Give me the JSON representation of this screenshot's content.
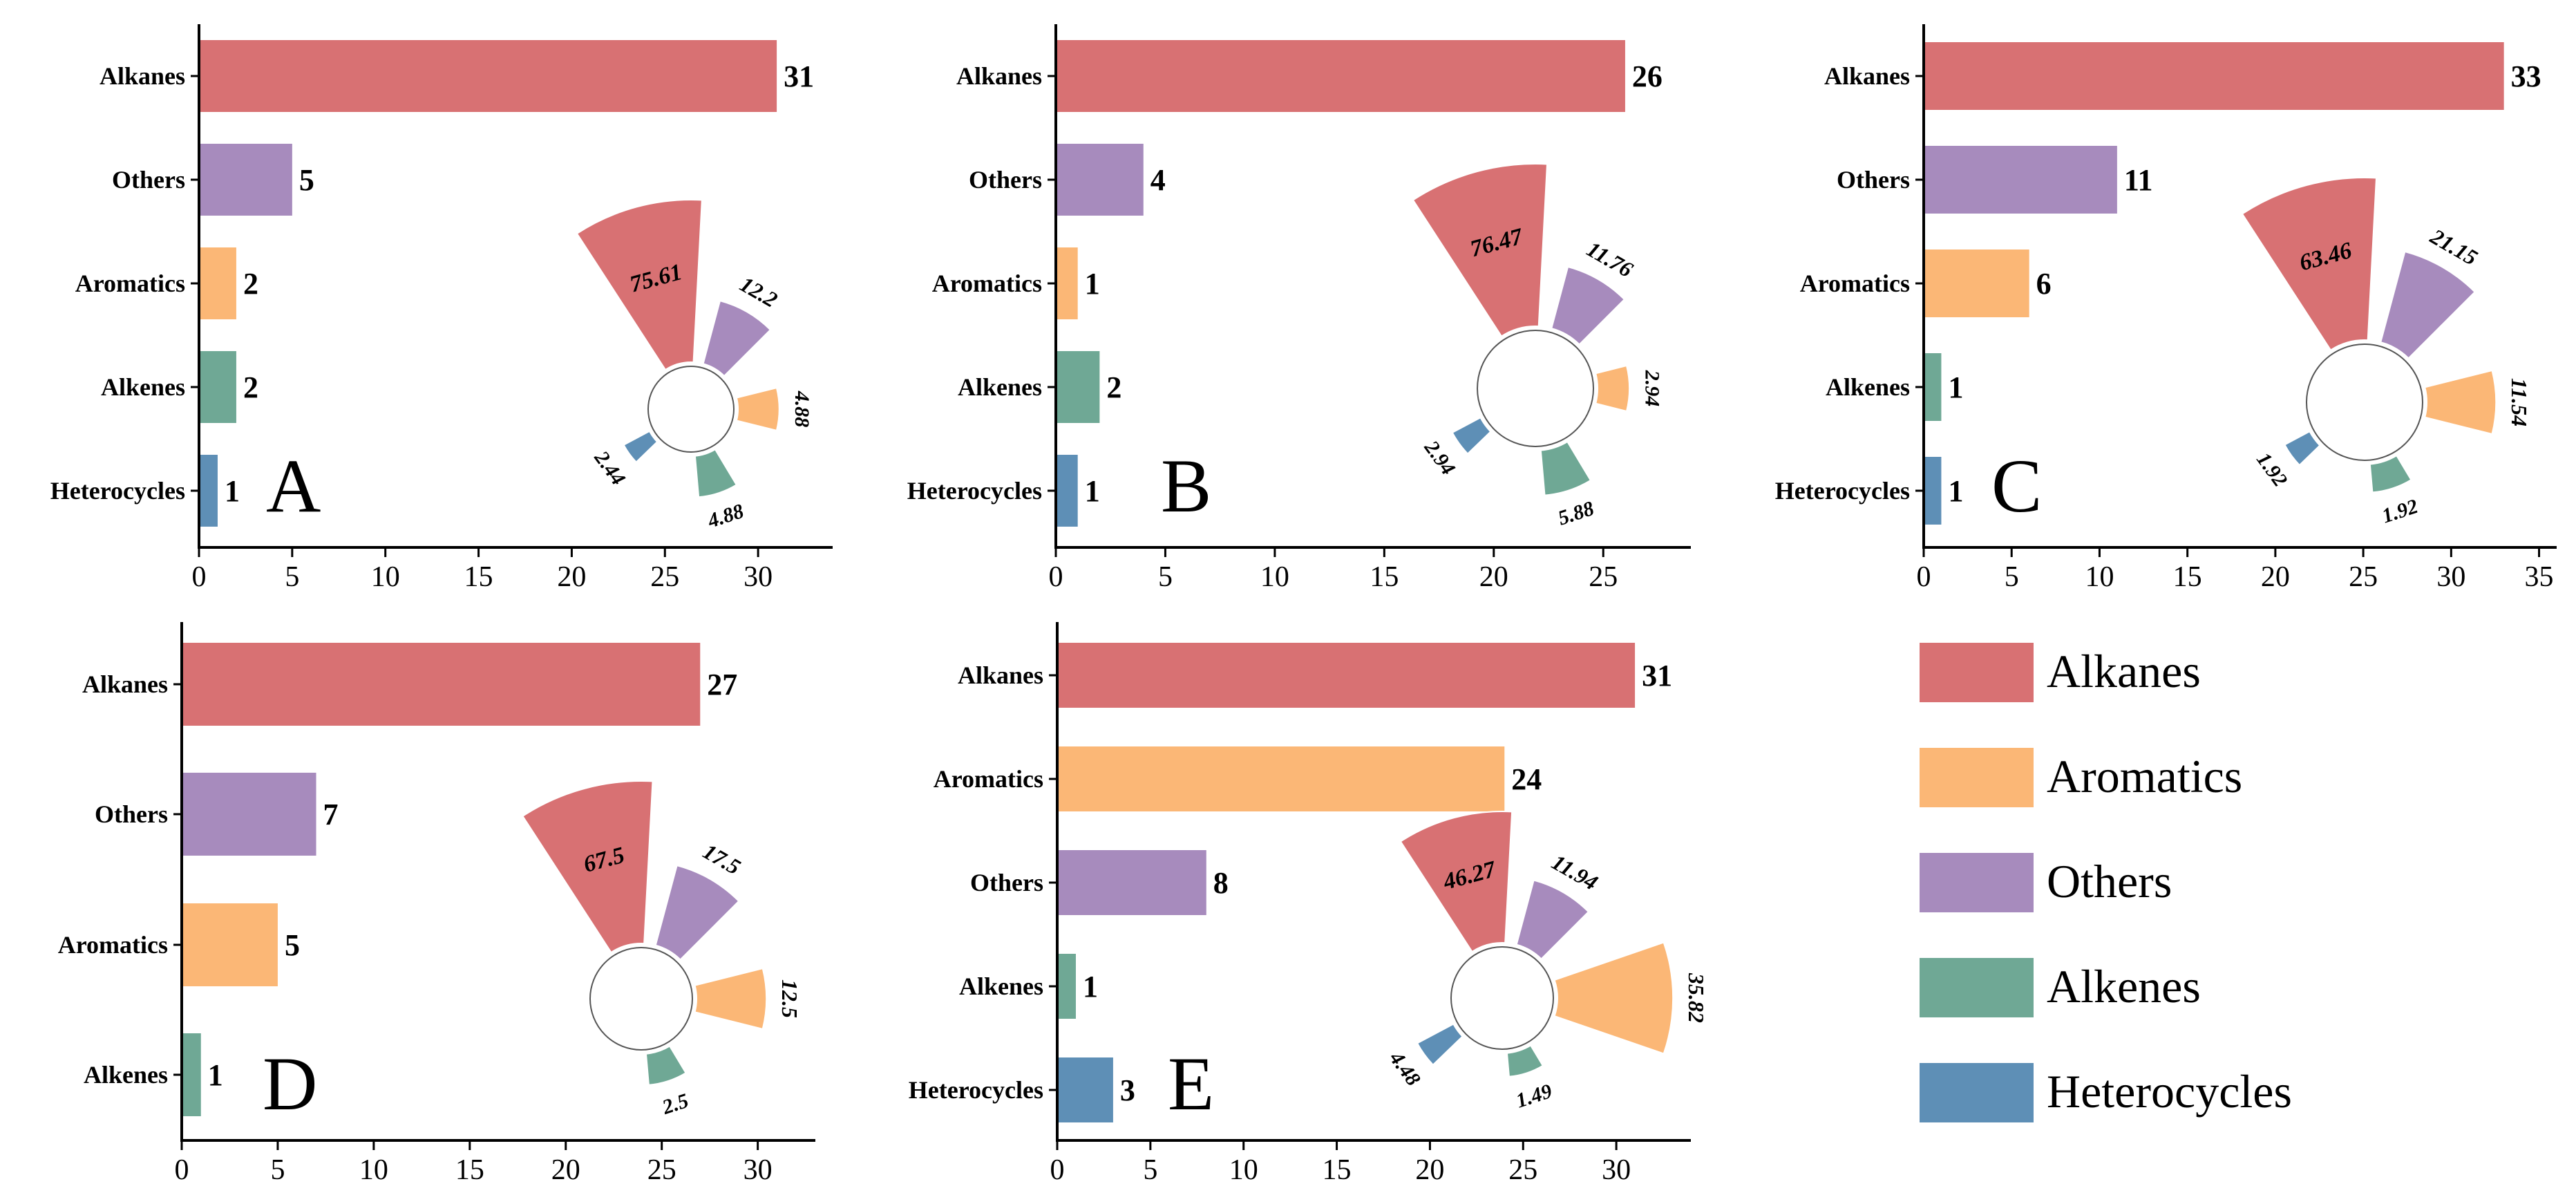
{
  "colors": {
    "Alkanes": "#d87173",
    "Aromatics": "#fbb776",
    "Others": "#a78bbd",
    "Alkenes": "#6fa895",
    "Heterocycles": "#5e8fb6"
  },
  "legend": {
    "items": [
      "Alkanes",
      "Aromatics",
      "Others",
      "Alkenes",
      "Heterocycles"
    ]
  },
  "chart_data": [
    {
      "type": "bar",
      "label": "A",
      "categories": [
        "Alkanes",
        "Others",
        "Aromatics",
        "Alkenes",
        "Heterocycles"
      ],
      "values": [
        31,
        5,
        2,
        2,
        1
      ],
      "xlim": [
        0,
        34
      ],
      "xticks": [
        0,
        5,
        10,
        15,
        20,
        25,
        30
      ],
      "rose": [
        {
          "name": "Alkanes",
          "value": 75.61,
          "text": "75.61"
        },
        {
          "name": "Others",
          "value": 12.2,
          "text": "12.2"
        },
        {
          "name": "Aromatics",
          "value": 4.88,
          "text": "4.88"
        },
        {
          "name": "Alkenes",
          "value": 4.88,
          "text": "4.88"
        },
        {
          "name": "Heterocycles",
          "value": 2.44,
          "text": "2.44"
        }
      ]
    },
    {
      "type": "bar",
      "label": "B",
      "categories": [
        "Alkanes",
        "Others",
        "Aromatics",
        "Alkenes",
        "Heterocycles"
      ],
      "values": [
        26,
        4,
        1,
        2,
        1
      ],
      "xlim": [
        0,
        29
      ],
      "xticks": [
        0,
        5,
        10,
        15,
        20,
        25
      ],
      "rose": [
        {
          "name": "Alkanes",
          "value": 76.47,
          "text": "76.47"
        },
        {
          "name": "Others",
          "value": 11.76,
          "text": "11.76"
        },
        {
          "name": "Aromatics",
          "value": 2.94,
          "text": "2.94"
        },
        {
          "name": "Alkenes",
          "value": 5.88,
          "text": "5.88"
        },
        {
          "name": "Heterocycles",
          "value": 2.94,
          "text": "2.94"
        }
      ]
    },
    {
      "type": "bar",
      "label": "C",
      "categories": [
        "Alkanes",
        "Others",
        "Aromatics",
        "Alkenes",
        "Heterocycles"
      ],
      "values": [
        33,
        11,
        6,
        1,
        1
      ],
      "xlim": [
        0,
        36
      ],
      "xticks": [
        0,
        5,
        10,
        15,
        20,
        25,
        30,
        35
      ],
      "rose": [
        {
          "name": "Alkanes",
          "value": 63.46,
          "text": "63.46"
        },
        {
          "name": "Others",
          "value": 21.15,
          "text": "21.15"
        },
        {
          "name": "Aromatics",
          "value": 11.54,
          "text": "11.54"
        },
        {
          "name": "Alkenes",
          "value": 1.92,
          "text": "1.92"
        },
        {
          "name": "Heterocycles",
          "value": 1.92,
          "text": "1.92"
        }
      ]
    },
    {
      "type": "bar",
      "label": "D",
      "categories": [
        "Alkanes",
        "Others",
        "Aromatics",
        "Alkenes"
      ],
      "values": [
        27,
        7,
        5,
        1
      ],
      "xlim": [
        0,
        33
      ],
      "xticks": [
        0,
        5,
        10,
        15,
        20,
        25,
        30
      ],
      "rose": [
        {
          "name": "Alkanes",
          "value": 67.5,
          "text": "67.5"
        },
        {
          "name": "Others",
          "value": 17.5,
          "text": "17.5"
        },
        {
          "name": "Aromatics",
          "value": 12.5,
          "text": "12.5"
        },
        {
          "name": "Alkenes",
          "value": 2.5,
          "text": "2.5"
        }
      ]
    },
    {
      "type": "bar",
      "label": "E",
      "categories": [
        "Alkanes",
        "Aromatics",
        "Others",
        "Alkenes",
        "Heterocycles"
      ],
      "values": [
        31,
        24,
        8,
        1,
        3
      ],
      "xlim": [
        0,
        34
      ],
      "xticks": [
        0,
        5,
        10,
        15,
        20,
        25,
        30
      ],
      "rose": [
        {
          "name": "Alkanes",
          "value": 46.27,
          "text": "46.27"
        },
        {
          "name": "Aromatics",
          "value": 35.82,
          "text": "35.82"
        },
        {
          "name": "Others",
          "value": 11.94,
          "text": "11.94"
        },
        {
          "name": "Alkenes",
          "value": 1.49,
          "text": "1.49"
        },
        {
          "name": "Heterocycles",
          "value": 4.48,
          "text": "4.48"
        }
      ]
    }
  ]
}
